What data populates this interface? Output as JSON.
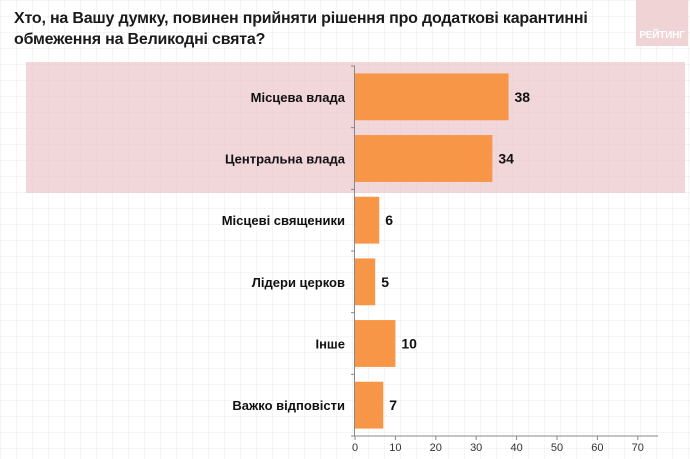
{
  "header": {
    "title": "Хто, на Вашу думку, повинен прийняти рішення про додаткові карантинні обмеження  на Великодні свята?",
    "logo_text": "РЕЙТИНГ"
  },
  "colors": {
    "bar": "#F79646",
    "highlight_band": "#EEC9CD",
    "logo_bg": "#EFD3D5"
  },
  "chart_data": {
    "type": "bar",
    "orientation": "horizontal",
    "title": "Хто, на Вашу думку, повинен прийняти рішення про додаткові карантинні обмеження  на Великодні свята?",
    "categories": [
      "Місцева влада",
      "Центральна влада",
      "Місцеві священики",
      "Лідери церков",
      "Інше",
      "Важко відповісти"
    ],
    "values": [
      38,
      34,
      6,
      5,
      10,
      7
    ],
    "value_labels": [
      "38",
      "34",
      "6",
      "5",
      "10",
      "7"
    ],
    "highlighted_categories": [
      "Місцева влада",
      "Центральна влада"
    ],
    "xlim": [
      0,
      75
    ],
    "xticks": [
      0,
      10,
      20,
      30,
      40,
      50,
      60,
      70
    ],
    "xtick_labels": [
      "0",
      "10",
      "20",
      "30",
      "40",
      "50",
      "60",
      "70"
    ],
    "xlabel": "",
    "ylabel": "",
    "grid": false,
    "legend": "none"
  }
}
